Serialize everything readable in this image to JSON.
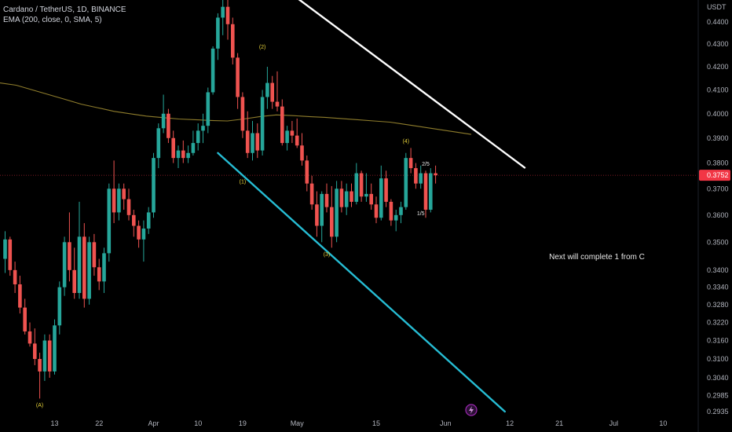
{
  "legend": {
    "symbol_line": "Cardano / TetherUS, 1D, BINANCE",
    "indicator_line": "EMA (200, close, 0, SMA, 5)"
  },
  "price_unit": "USDT",
  "colors": {
    "up": "#26a69a",
    "down": "#ef5350",
    "ema": "#8f7d2c",
    "trend_upper": "#ffffff",
    "trend_lower": "#26bcd3",
    "wave_labels": "#e6d23a",
    "price_tag": "#f23645",
    "event_icon": "#9c27b0"
  },
  "icons": {
    "event": "lightning-icon"
  },
  "annotations": {
    "note": "Next will complete 1 from C",
    "wave_A": "(A)",
    "wave_1": "(1)",
    "wave_2": "(2)",
    "wave_3": "(3)",
    "wave_4": "(4)",
    "sub_1_5": "1/5",
    "sub_2_5": "2/5"
  },
  "chart_data": {
    "type": "candlestick",
    "title": "Cardano / TetherUS, 1D, BINANCE",
    "ylabel": "USDT",
    "y_scale": "log",
    "ylim": [
      0.2908,
      0.4616
    ],
    "y_ticks": [
      "0.4400",
      "0.4300",
      "0.4200",
      "0.4100",
      "0.4000",
      "0.3900",
      "0.3800",
      "0.3700",
      "0.3600",
      "0.3500",
      "0.3400",
      "0.3340",
      "0.3280",
      "0.3220",
      "0.3160",
      "0.3100",
      "0.3040",
      "0.2985",
      "0.2935"
    ],
    "x_ticks": [
      "13",
      "22",
      "Apr",
      "10",
      "19",
      "May",
      "15",
      "Jun",
      "12",
      "21",
      "Jul",
      "10"
    ],
    "last_price": "0.3752",
    "candles": [
      [
        0.344,
        0.354,
        0.339,
        0.351
      ],
      [
        0.351,
        0.352,
        0.338,
        0.34
      ],
      [
        0.34,
        0.343,
        0.332,
        0.335
      ],
      [
        0.335,
        0.338,
        0.325,
        0.327
      ],
      [
        0.327,
        0.33,
        0.318,
        0.319
      ],
      [
        0.319,
        0.322,
        0.314,
        0.315
      ],
      [
        0.315,
        0.32,
        0.308,
        0.31
      ],
      [
        0.31,
        0.312,
        0.2975,
        0.306
      ],
      [
        0.306,
        0.318,
        0.303,
        0.316
      ],
      [
        0.316,
        0.318,
        0.304,
        0.306
      ],
      [
        0.306,
        0.323,
        0.305,
        0.321
      ],
      [
        0.321,
        0.336,
        0.318,
        0.334
      ],
      [
        0.334,
        0.352,
        0.331,
        0.35
      ],
      [
        0.35,
        0.361,
        0.336,
        0.34
      ],
      [
        0.34,
        0.348,
        0.33,
        0.332
      ],
      [
        0.332,
        0.365,
        0.33,
        0.352
      ],
      [
        0.352,
        0.357,
        0.327,
        0.33
      ],
      [
        0.33,
        0.352,
        0.328,
        0.35
      ],
      [
        0.35,
        0.353,
        0.338,
        0.341
      ],
      [
        0.341,
        0.344,
        0.333,
        0.336
      ],
      [
        0.336,
        0.348,
        0.332,
        0.346
      ],
      [
        0.346,
        0.372,
        0.343,
        0.37
      ],
      [
        0.37,
        0.381,
        0.357,
        0.361
      ],
      [
        0.361,
        0.372,
        0.358,
        0.37
      ],
      [
        0.37,
        0.372,
        0.362,
        0.366
      ],
      [
        0.366,
        0.37,
        0.358,
        0.36
      ],
      [
        0.36,
        0.362,
        0.352,
        0.356
      ],
      [
        0.356,
        0.358,
        0.348,
        0.351
      ],
      [
        0.351,
        0.358,
        0.343,
        0.355
      ],
      [
        0.355,
        0.363,
        0.353,
        0.361
      ],
      [
        0.361,
        0.384,
        0.359,
        0.382
      ],
      [
        0.382,
        0.396,
        0.378,
        0.394
      ],
      [
        0.394,
        0.408,
        0.392,
        0.4
      ],
      [
        0.4,
        0.402,
        0.388,
        0.39
      ],
      [
        0.39,
        0.393,
        0.38,
        0.382
      ],
      [
        0.382,
        0.387,
        0.378,
        0.385
      ],
      [
        0.385,
        0.389,
        0.38,
        0.382
      ],
      [
        0.382,
        0.387,
        0.38,
        0.384
      ],
      [
        0.384,
        0.393,
        0.383,
        0.388
      ],
      [
        0.388,
        0.396,
        0.385,
        0.393
      ],
      [
        0.393,
        0.4,
        0.388,
        0.395
      ],
      [
        0.395,
        0.411,
        0.392,
        0.409
      ],
      [
        0.409,
        0.429,
        0.408,
        0.428
      ],
      [
        0.428,
        0.444,
        0.423,
        0.442
      ],
      [
        0.442,
        0.453,
        0.434,
        0.447
      ],
      [
        0.447,
        0.4616,
        0.432,
        0.439
      ],
      [
        0.439,
        0.442,
        0.421,
        0.424
      ],
      [
        0.424,
        0.426,
        0.402,
        0.407
      ],
      [
        0.407,
        0.409,
        0.39,
        0.393
      ],
      [
        0.393,
        0.401,
        0.382,
        0.384
      ],
      [
        0.384,
        0.397,
        0.381,
        0.392
      ],
      [
        0.392,
        0.396,
        0.382,
        0.385
      ],
      [
        0.385,
        0.41,
        0.383,
        0.407
      ],
      [
        0.407,
        0.42,
        0.402,
        0.413
      ],
      [
        0.413,
        0.416,
        0.402,
        0.405
      ],
      [
        0.405,
        0.418,
        0.401,
        0.403
      ],
      [
        0.403,
        0.406,
        0.387,
        0.388
      ],
      [
        0.388,
        0.395,
        0.385,
        0.393
      ],
      [
        0.393,
        0.397,
        0.388,
        0.391
      ],
      [
        0.391,
        0.398,
        0.386,
        0.387
      ],
      [
        0.387,
        0.392,
        0.379,
        0.381
      ],
      [
        0.381,
        0.383,
        0.369,
        0.372
      ],
      [
        0.372,
        0.375,
        0.362,
        0.364
      ],
      [
        0.364,
        0.369,
        0.352,
        0.356
      ],
      [
        0.356,
        0.369,
        0.35,
        0.368
      ],
      [
        0.368,
        0.372,
        0.361,
        0.363
      ],
      [
        0.363,
        0.371,
        0.348,
        0.352
      ],
      [
        0.352,
        0.373,
        0.35,
        0.37
      ],
      [
        0.37,
        0.373,
        0.361,
        0.363
      ],
      [
        0.363,
        0.372,
        0.36,
        0.369
      ],
      [
        0.369,
        0.372,
        0.363,
        0.365
      ],
      [
        0.365,
        0.38,
        0.364,
        0.376
      ],
      [
        0.376,
        0.377,
        0.365,
        0.367
      ],
      [
        0.367,
        0.376,
        0.365,
        0.368
      ],
      [
        0.368,
        0.372,
        0.362,
        0.364
      ],
      [
        0.364,
        0.367,
        0.357,
        0.359
      ],
      [
        0.359,
        0.379,
        0.358,
        0.374
      ],
      [
        0.374,
        0.377,
        0.363,
        0.365
      ],
      [
        0.365,
        0.366,
        0.356,
        0.358
      ],
      [
        0.358,
        0.362,
        0.354,
        0.36
      ],
      [
        0.36,
        0.365,
        0.357,
        0.363
      ],
      [
        0.363,
        0.384,
        0.362,
        0.382
      ],
      [
        0.382,
        0.386,
        0.376,
        0.378
      ],
      [
        0.378,
        0.38,
        0.37,
        0.372
      ],
      [
        0.372,
        0.379,
        0.37,
        0.376
      ],
      [
        0.376,
        0.377,
        0.359,
        0.362
      ],
      [
        0.362,
        0.378,
        0.361,
        0.376
      ],
      [
        0.376,
        0.379,
        0.372,
        0.3752
      ]
    ],
    "ema_200": [
      0.413,
      0.412,
      0.41,
      0.408,
      0.406,
      0.404,
      0.4025,
      0.401,
      0.4,
      0.399,
      0.3984,
      0.3978,
      0.3975,
      0.3972,
      0.397,
      0.3978,
      0.3988,
      0.3995,
      0.3992,
      0.3988,
      0.3985,
      0.398,
      0.3975,
      0.397,
      0.3965,
      0.3955,
      0.3945,
      0.3935,
      0.3925,
      0.3915
    ],
    "trend_lines": [
      {
        "name": "upper-resistance",
        "from": {
          "bar": 53,
          "price": 0.4616
        },
        "to": {
          "bar": 105,
          "price": 0.3782
        }
      },
      {
        "name": "lower-support",
        "from": {
          "bar": 43,
          "price": 0.384
        },
        "to": {
          "bar": 101,
          "price": 0.2935
        }
      }
    ],
    "wave_labels": [
      {
        "key": "wave_A",
        "bar": 7,
        "price": 0.295
      },
      {
        "key": "wave_1",
        "bar": 48,
        "price": 0.372
      },
      {
        "key": "wave_2",
        "bar": 52,
        "price": 0.428
      },
      {
        "key": "wave_3",
        "bar": 65,
        "price": 0.345
      },
      {
        "key": "wave_4",
        "bar": 81,
        "price": 0.388
      },
      {
        "key": "sub_1_5",
        "bar": 84,
        "price": 0.36
      },
      {
        "key": "sub_2_5",
        "bar": 85,
        "price": 0.379
      }
    ]
  }
}
